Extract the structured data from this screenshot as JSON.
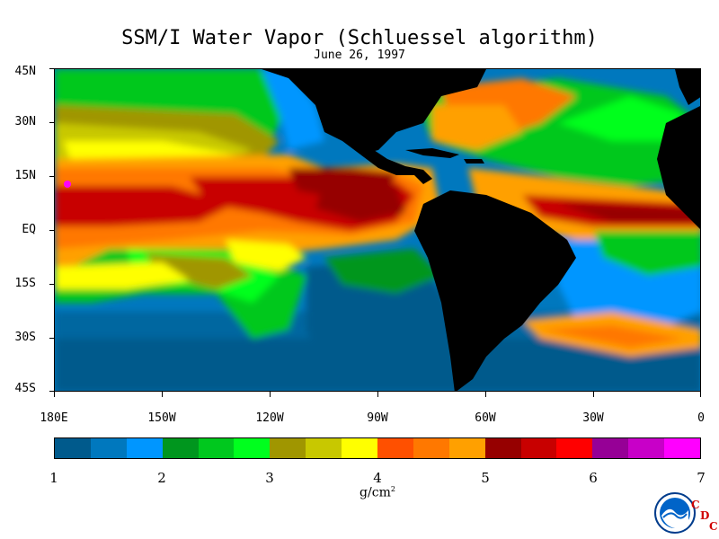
{
  "title": "SSM/I Water Vapor (Schluessel algorithm)",
  "subtitle": "June 26, 1997",
  "lat_labels": [
    "45N",
    "30N",
    "15N",
    "EQ",
    "15S",
    "30S",
    "45S"
  ],
  "lon_labels": [
    "180E",
    "150W",
    "120W",
    "90W",
    "60W",
    "30W",
    "0"
  ],
  "colorbar": {
    "colors": [
      "#005a8c",
      "#0078be",
      "#0096ff",
      "#00961e",
      "#00c81e",
      "#00ff1e",
      "#a09600",
      "#c8c800",
      "#ffff00",
      "#ff5000",
      "#ff7800",
      "#ffa000",
      "#960000",
      "#c80000",
      "#ff0000",
      "#960096",
      "#c800c8",
      "#ff00ff"
    ],
    "tick_labels": [
      "1",
      "2",
      "3",
      "4",
      "5",
      "6",
      "7"
    ],
    "units_base": "g/cm",
    "units_sup": "2"
  },
  "logo": {
    "name": "NOAA",
    "letters": [
      "C",
      "D",
      "C"
    ]
  }
}
